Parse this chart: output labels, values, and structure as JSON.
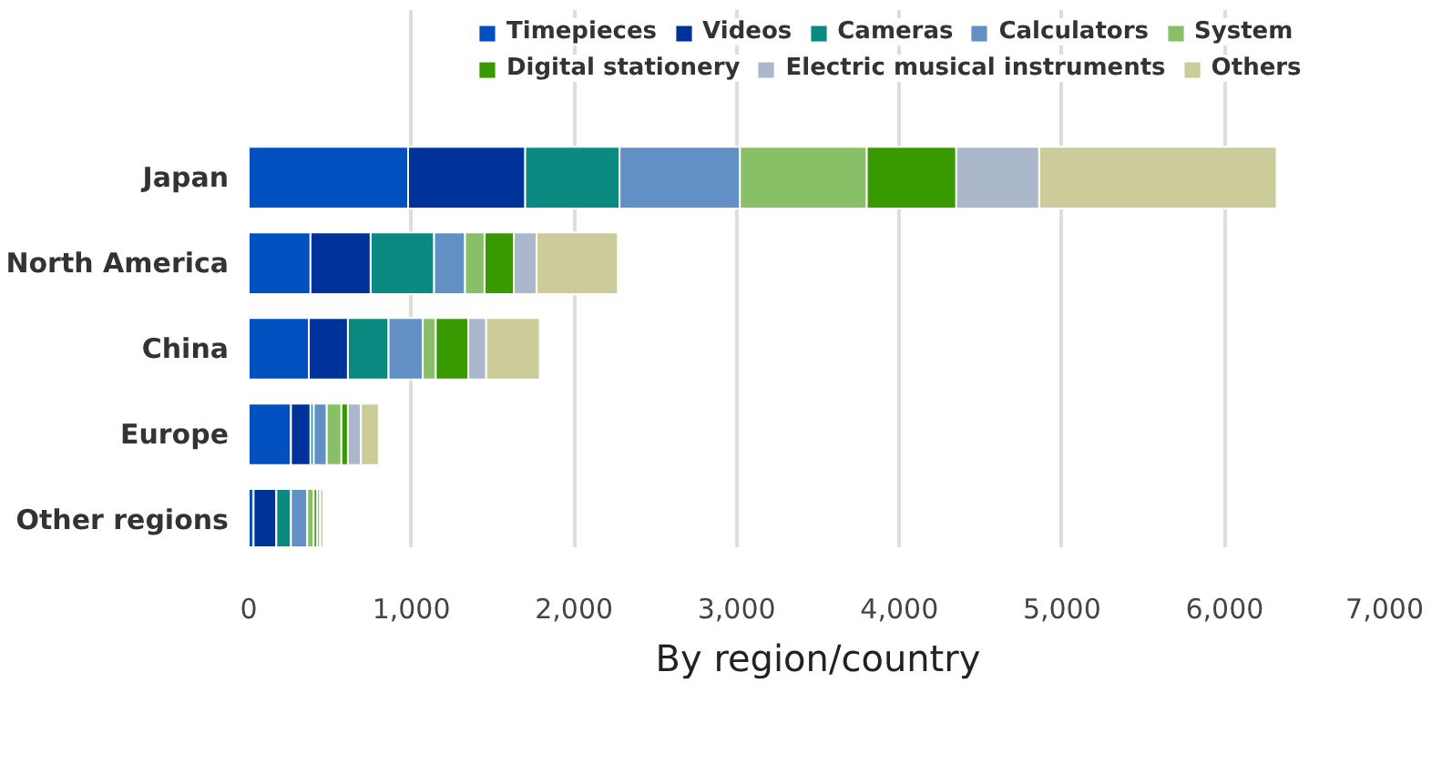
{
  "chart_data": {
    "type": "bar",
    "orientation": "horizontal",
    "stacked": true,
    "title": "By region/country",
    "categories": [
      "Japan",
      "North America",
      "China",
      "Europe",
      "Other regions"
    ],
    "series": [
      {
        "name": "Timepieces",
        "color": "#0050c0",
        "values": [
          980,
          380,
          370,
          260,
          30
        ]
      },
      {
        "name": "Videos",
        "color": "#003399",
        "values": [
          720,
          370,
          240,
          120,
          140
        ]
      },
      {
        "name": "Cameras",
        "color": "#0a8a80",
        "values": [
          580,
          390,
          250,
          20,
          90
        ]
      },
      {
        "name": "Calculators",
        "color": "#6290c4",
        "values": [
          740,
          190,
          210,
          80,
          100
        ]
      },
      {
        "name": "System",
        "color": "#88c068",
        "values": [
          780,
          120,
          80,
          90,
          40
        ]
      },
      {
        "name": "Digital stationery",
        "color": "#389a00",
        "values": [
          550,
          180,
          200,
          40,
          20
        ]
      },
      {
        "name": "Electric musical instruments",
        "color": "#abb8cc",
        "values": [
          510,
          140,
          110,
          80,
          20
        ]
      },
      {
        "name": "Others",
        "color": "#cccc9a",
        "values": [
          1460,
          500,
          330,
          110,
          20
        ]
      }
    ],
    "xlim": [
      0,
      7000
    ],
    "xticks": [
      0,
      {
        "value": 1000,
        "label": "1,000"
      },
      {
        "value": 2000,
        "label": "2,000"
      },
      {
        "value": 3000,
        "label": "3,000"
      },
      {
        "value": 4000,
        "label": "4,000"
      },
      {
        "value": 5000,
        "label": "5,000"
      },
      {
        "value": 6000,
        "label": "6,000"
      },
      {
        "value": 7000,
        "label": "7,000"
      }
    ],
    "grid": "x",
    "legend": "top right"
  }
}
